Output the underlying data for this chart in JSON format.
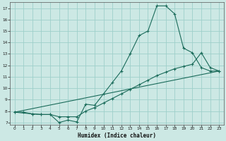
{
  "xlabel": "Humidex (Indice chaleur)",
  "bg_color": "#cce8e4",
  "grid_color": "#9ecfca",
  "line_color": "#1a6b5a",
  "xlim": [
    -0.5,
    23.5
  ],
  "ylim": [
    6.8,
    17.5
  ],
  "xticks": [
    0,
    1,
    2,
    3,
    4,
    5,
    6,
    7,
    8,
    9,
    10,
    11,
    12,
    13,
    14,
    15,
    16,
    17,
    18,
    19,
    20,
    21,
    22,
    23
  ],
  "yticks": [
    7,
    8,
    9,
    10,
    11,
    12,
    13,
    14,
    15,
    16,
    17
  ],
  "curve1_x": [
    0,
    1,
    2,
    3,
    4,
    5,
    6,
    7,
    8,
    9,
    10,
    11,
    12,
    13,
    14,
    15,
    16,
    17,
    18,
    19,
    20,
    21,
    22,
    23
  ],
  "curve1_y": [
    7.9,
    7.9,
    7.75,
    7.7,
    7.7,
    7.0,
    7.2,
    7.05,
    8.6,
    8.5,
    9.5,
    10.5,
    11.5,
    13.0,
    14.6,
    15.0,
    17.2,
    17.2,
    16.5,
    13.5,
    13.1,
    11.8,
    11.5,
    11.5
  ],
  "curve2_x": [
    0,
    2,
    3,
    4,
    5,
    6,
    7,
    8,
    9,
    10,
    11,
    12,
    13,
    14,
    15,
    16,
    17,
    18,
    19,
    20,
    21,
    22,
    23
  ],
  "curve2_y": [
    7.9,
    7.75,
    7.7,
    7.7,
    7.5,
    7.5,
    7.5,
    8.0,
    8.3,
    8.7,
    9.1,
    9.5,
    9.9,
    10.3,
    10.7,
    11.1,
    11.4,
    11.7,
    11.9,
    12.1,
    13.1,
    11.8,
    11.5
  ],
  "line3_x": [
    0,
    23
  ],
  "line3_y": [
    7.9,
    11.5
  ]
}
